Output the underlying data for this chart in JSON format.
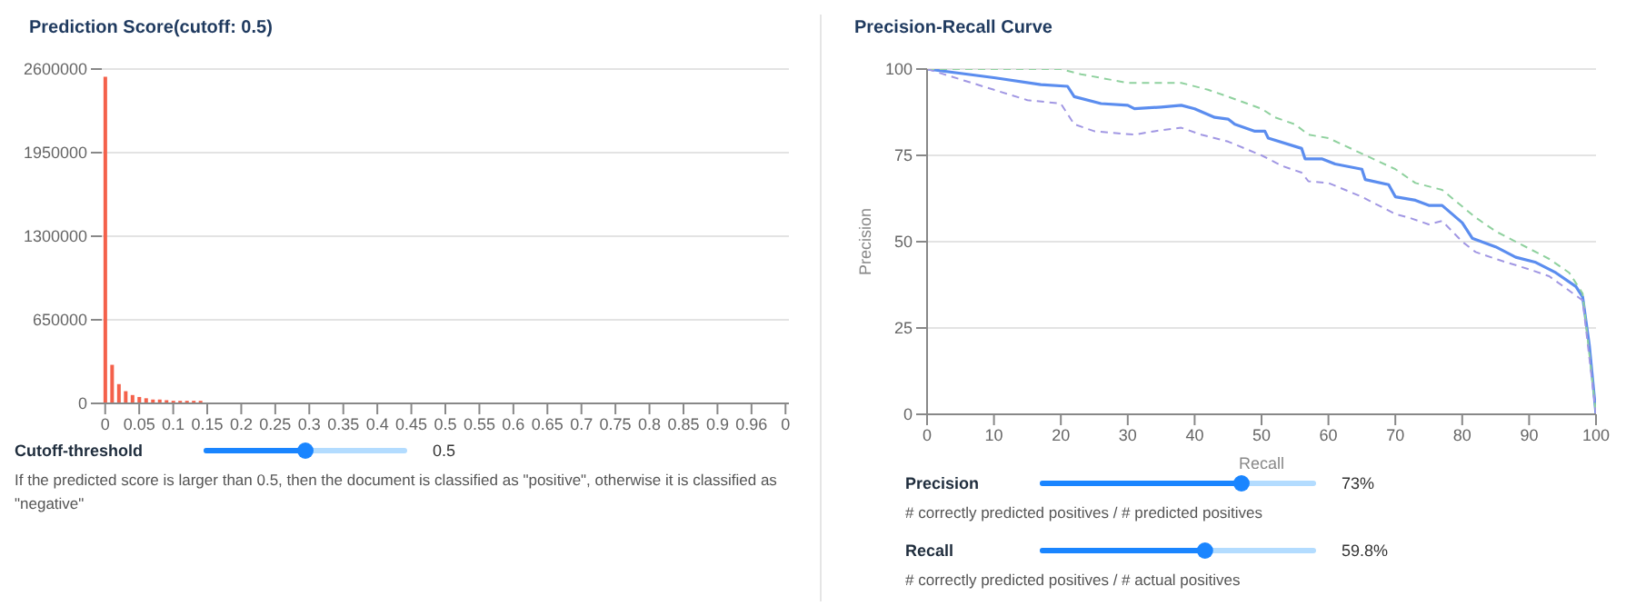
{
  "chart_data": [
    {
      "type": "bar",
      "title": "Prediction Score(cutoff: 0.5)",
      "categories": [
        "0",
        null,
        null,
        null,
        null,
        "0.05",
        null,
        null,
        null,
        null,
        "0.1",
        null,
        null,
        null,
        null,
        "0.15",
        null,
        null,
        null,
        null,
        "0.2",
        null,
        null,
        null,
        null,
        "0.25",
        null,
        null,
        null,
        null,
        "0.3",
        null,
        null,
        null,
        null,
        "0.35",
        null,
        null,
        null,
        null,
        "0.4",
        null,
        null,
        null,
        null,
        "0.45",
        null,
        null,
        null,
        null,
        "0.5",
        null,
        null,
        null,
        null,
        "0.55",
        null,
        null,
        null,
        null,
        "0.6",
        null,
        null,
        null,
        null,
        "0.65",
        null,
        null,
        null,
        null,
        "0.7",
        null,
        null,
        null,
        null,
        "0.75",
        null,
        null,
        null,
        null,
        "0.8",
        null,
        null,
        null,
        null,
        "0.85",
        null,
        null,
        null,
        null,
        "0.9",
        null,
        null,
        null,
        null,
        "0.96",
        null,
        null,
        null,
        null,
        "0"
      ],
      "values": [
        2540000,
        300000,
        150000,
        95000,
        65000,
        50000,
        40000,
        30000,
        30000,
        25000,
        20000,
        20000,
        20000,
        20000,
        20000,
        null,
        null,
        null,
        null,
        null,
        null,
        null,
        null,
        null,
        null,
        null,
        null,
        null,
        null,
        null,
        null,
        null,
        null,
        null,
        null,
        null,
        null,
        null,
        null,
        null,
        null,
        null,
        null,
        null,
        null,
        null,
        null,
        null,
        null,
        null,
        null,
        null,
        null,
        null,
        null,
        null,
        null,
        null,
        null,
        null,
        null,
        null,
        null,
        null,
        null,
        null,
        null,
        null,
        null,
        null,
        null,
        null,
        null,
        null,
        null,
        null,
        null,
        null,
        null,
        null,
        null,
        null,
        null,
        null,
        null,
        null,
        null,
        null,
        null,
        null,
        null,
        null,
        null,
        null,
        null,
        null,
        null,
        null,
        null,
        null,
        null
      ],
      "color": "#f4614b",
      "ylim": [
        0,
        2600000
      ],
      "yticks": [
        0,
        650000,
        1300000,
        1950000,
        2600000
      ],
      "grid": "y",
      "annotations": [
        "Cutoff-threshold",
        "0.5",
        "If the predicted score is larger than 0.5, then the document is classified as \"positive\", otherwise it is classified as \"negative\""
      ]
    },
    {
      "type": "line",
      "title": "Precision-Recall Curve",
      "xlabel": "Recall",
      "ylabel": "Precision",
      "series": [
        {
          "color": "#5b8def",
          "line_style": "solid",
          "x": [
            0,
            10,
            17,
            21,
            22,
            26,
            30,
            31,
            35,
            38,
            40,
            43,
            45,
            46,
            49,
            50.5,
            51,
            56,
            56.5,
            59,
            61,
            65,
            65.5,
            69,
            70,
            73,
            75,
            77,
            80,
            81.5,
            85,
            88,
            91,
            94,
            97,
            98,
            99,
            100
          ],
          "values": [
            100,
            97.5,
            95.5,
            95,
            92,
            90,
            89.5,
            88.5,
            89,
            89.5,
            88.5,
            86,
            85.5,
            84,
            82,
            82,
            80,
            77,
            74,
            74,
            72.5,
            71,
            68,
            66.5,
            63,
            62,
            60.5,
            60.5,
            55.5,
            51,
            48.5,
            45.5,
            44,
            41,
            37,
            34,
            20,
            0
          ]
        },
        {
          "color": "#8fd19e",
          "line_style": "dashed",
          "x": [
            0,
            20,
            23,
            30,
            32,
            38,
            42,
            45,
            50,
            52,
            55,
            57,
            60,
            65,
            70,
            73,
            77,
            82,
            85,
            90,
            93,
            96,
            98,
            100
          ],
          "values": [
            100,
            100,
            98.5,
            96,
            96,
            96,
            94,
            92,
            88.5,
            86,
            84,
            81,
            80,
            75.5,
            71,
            67,
            65,
            57,
            53,
            48,
            45,
            41,
            35,
            0
          ]
        },
        {
          "color": "#a197e3",
          "line_style": "dashed",
          "x": [
            0,
            5,
            10,
            15,
            20,
            22,
            25,
            31,
            34,
            38,
            41,
            45,
            50,
            53,
            56,
            57,
            60,
            65,
            70,
            72,
            75,
            77,
            80,
            82,
            85,
            90,
            93,
            98,
            100
          ],
          "values": [
            100,
            97,
            94,
            91,
            90,
            84,
            82,
            81,
            82,
            83,
            81,
            79,
            75,
            72,
            70,
            67.5,
            67,
            63,
            58,
            57,
            55,
            56,
            50,
            47,
            45,
            42,
            40,
            33,
            0
          ]
        }
      ],
      "xlim": [
        0,
        100
      ],
      "xticks": [
        0,
        10,
        20,
        30,
        40,
        50,
        60,
        70,
        80,
        90,
        100
      ],
      "ylim": [
        0,
        100
      ],
      "yticks": [
        0,
        25,
        50,
        75,
        100
      ],
      "grid": "y",
      "marker": "none",
      "annotations": [
        "Precision",
        "73%",
        "# correctly predicted positives / # predicted positives",
        "Recall",
        "59.8%",
        "# correctly predicted positives / # actual positives"
      ]
    }
  ]
}
